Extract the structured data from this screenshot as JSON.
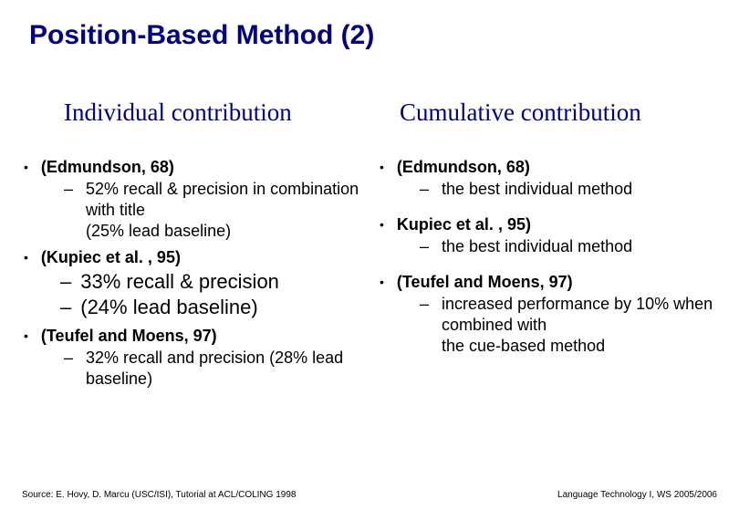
{
  "title": "Position-Based Method (2)",
  "left_heading": "Individual contribution",
  "right_heading": "Cumulative contribution",
  "left": {
    "b1": "(Edmundson, 68)",
    "b1s1": " 52% recall & precision in combination with title\n(25% lead baseline)",
    "b2": "(Kupiec et al. , 95)",
    "b2s1": "33% recall & precision",
    "b2s2": "(24% lead baseline)",
    "b3": "(Teufel and Moens, 97)",
    "b3s1": "32% recall and precision (28% lead baseline)"
  },
  "right": {
    "b1": "(Edmundson, 68)",
    "b1s1": "the best individual method",
    "b2": "Kupiec et al. , 95)",
    "b2s1": "the best individual method",
    "b3": "(Teufel and Moens, 97)",
    "b3s1": "increased performance by 10% when combined with\nthe cue-based method"
  },
  "source": "Source: E. Hovy, D. Marcu (USC/ISI), Tutorial at ACL/COLING 1998",
  "footer": "Language Technology I, WS 2005/2006"
}
